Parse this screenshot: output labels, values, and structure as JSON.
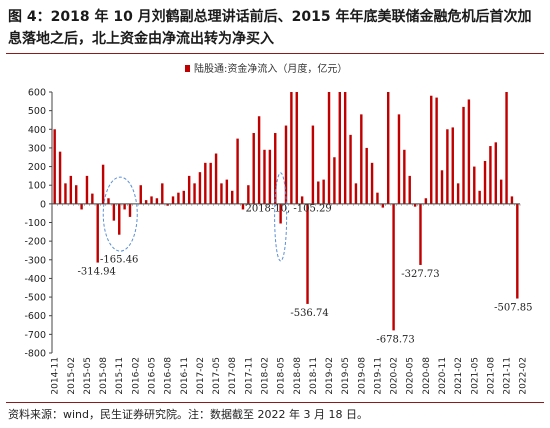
{
  "title": "图 4：2018 年 10 月刘鹤副总理讲话前后、2015 年年底美联储金融危机后首次加息落地之后，北上资金由净流出转为净买入",
  "source": "资料来源：wind，民生证券研究院。注：数据截至 2022 年 3 月 18 日。",
  "colors": {
    "bar": "#c00000",
    "title_rule": "#8a1c1c",
    "callout": "#5b8fd6"
  },
  "chart_data": {
    "type": "bar",
    "legend_position": "top-center",
    "ylim": [
      -800,
      600
    ],
    "yticks": [
      -800,
      -700,
      -600,
      -500,
      -400,
      -300,
      -200,
      -100,
      0,
      100,
      200,
      300,
      400,
      500,
      600
    ],
    "xtick_labels": [
      "2014-11",
      "2015-02",
      "2015-05",
      "2015-08",
      "2015-11",
      "2016-02",
      "2016-05",
      "2016-08",
      "2016-11",
      "2017-02",
      "2017-05",
      "2017-08",
      "2017-11",
      "2018-02",
      "2018-05",
      "2018-08",
      "2018-11",
      "2019-02",
      "2019-05",
      "2019-08",
      "2019-11",
      "2020-02",
      "2020-05",
      "2020-08",
      "2020-11",
      "2021-02",
      "2021-05",
      "2021-08",
      "2021-11",
      "2022-02"
    ],
    "series": [
      {
        "name": "陆股通:资金净流入（月度，亿元）",
        "values": [
          400,
          280,
          110,
          150,
          100,
          -30,
          150,
          55,
          -314.94,
          210,
          30,
          -90,
          -165.46,
          -30,
          -70,
          0,
          100,
          20,
          40,
          30,
          110,
          -10,
          40,
          60,
          70,
          150,
          110,
          170,
          220,
          220,
          270,
          110,
          130,
          70,
          350,
          -30,
          100,
          380,
          470,
          290,
          290,
          380,
          -105.29,
          420,
          600,
          600,
          40,
          -536.74,
          420,
          120,
          130,
          600,
          250,
          600,
          600,
          370,
          110,
          480,
          300,
          220,
          60,
          -20,
          600,
          -678.73,
          480,
          290,
          150,
          -15,
          -327.73,
          30,
          580,
          570,
          180,
          400,
          410,
          110,
          520,
          560,
          200,
          70,
          230,
          310,
          330,
          130,
          600,
          40,
          -507.85
        ]
      }
    ],
    "data_labels": [
      {
        "text": "-314.94",
        "index": 8
      },
      {
        "text": "-165.46",
        "index": 12
      },
      {
        "text": "2018-10, -105.29",
        "index": 42
      },
      {
        "text": "-536.74",
        "index": 47
      },
      {
        "text": "-678.73",
        "index": 63
      },
      {
        "text": "-327.73",
        "index": 68
      },
      {
        "text": "-507.85",
        "index": 86
      }
    ]
  }
}
